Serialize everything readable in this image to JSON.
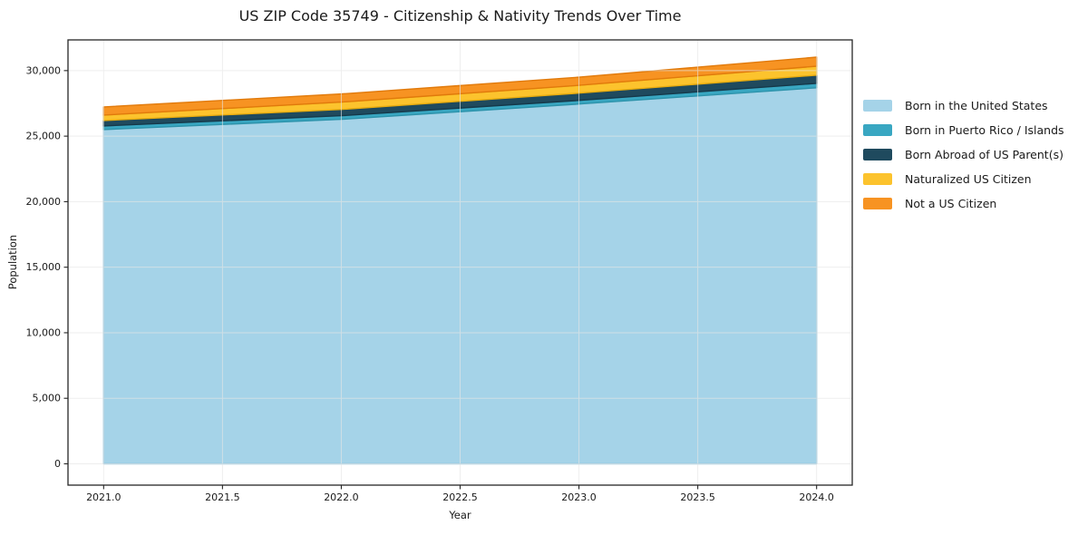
{
  "title": "US ZIP Code 35749 - Citizenship & Nativity Trends Over Time",
  "chart_data": {
    "type": "area",
    "stacked": true,
    "title": "US ZIP Code 35749 - Citizenship & Nativity Trends Over Time",
    "xlabel": "Year",
    "ylabel": "Population",
    "x": [
      2021,
      2022,
      2023,
      2024
    ],
    "series": [
      {
        "name": "Born in the United States",
        "color": "#a5d3e8",
        "edge_color": "#8bc3dc",
        "values": [
          25500,
          26280,
          27450,
          28690
        ]
      },
      {
        "name": "Born in Puerto Rico / Islands",
        "color": "#39a7c2",
        "edge_color": "#2d93ab",
        "values": [
          280,
          280,
          280,
          340
        ]
      },
      {
        "name": "Born Abroad of US Parent(s)",
        "color": "#1f4a5e",
        "edge_color": "#16394a",
        "values": [
          410,
          480,
          550,
          620
        ]
      },
      {
        "name": "Naturalized US Citizen",
        "color": "#fcc32d",
        "edge_color": "#e8ac0f",
        "values": [
          420,
          560,
          600,
          690
        ]
      },
      {
        "name": "Not a US Citizen",
        "color": "#f79322",
        "edge_color": "#e17a0b",
        "values": [
          620,
          620,
          620,
          690
        ]
      }
    ],
    "x_tick_labels": [
      "2021.0",
      "2021.5",
      "2022.0",
      "2022.5",
      "2023.0",
      "2023.5",
      "2024.0"
    ],
    "y_tick_labels": [
      "0",
      "5,000",
      "10,000",
      "15,000",
      "20,000",
      "25,000",
      "30,000"
    ],
    "xlim": [
      2020.85,
      2024.15
    ],
    "ylim": [
      -1626,
      32343
    ],
    "grid": true,
    "grid_color": "#e6e6e6",
    "spine_color": "#262626",
    "legend_position": "right"
  }
}
